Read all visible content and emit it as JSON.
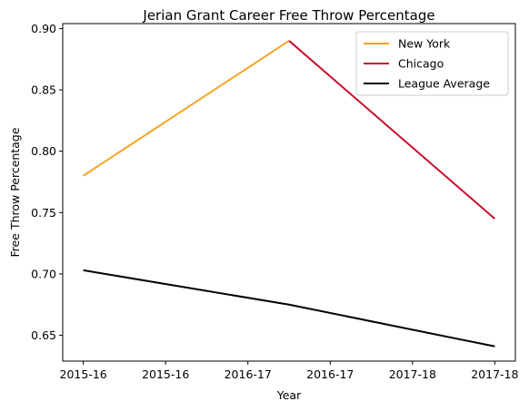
{
  "chart_data": {
    "type": "line",
    "title": "Jerian Grant Career Free Throw Percentage",
    "xlabel": "Year",
    "ylabel": "Free Throw Percentage",
    "x": [
      0,
      1,
      2
    ],
    "x_ticks": [
      {
        "x": 0,
        "label": "2015-16"
      },
      {
        "x": 0.4,
        "label": "2015-16"
      },
      {
        "x": 0.8,
        "label": "2016-17"
      },
      {
        "x": 1.2,
        "label": "2016-17"
      },
      {
        "x": 1.6,
        "label": "2017-18"
      },
      {
        "x": 2,
        "label": "2017-18"
      }
    ],
    "xlim": [
      -0.1,
      2.1
    ],
    "ylim": [
      0.629,
      0.904
    ],
    "y_ticks": [
      0.65,
      0.7,
      0.75,
      0.8,
      0.85,
      0.9
    ],
    "y_tick_labels": [
      "0.65",
      "0.70",
      "0.75",
      "0.80",
      "0.85",
      "0.90"
    ],
    "grid": false,
    "legend_position": "top-right",
    "series": [
      {
        "name": "New York",
        "color": "#F5A623",
        "points": [
          [
            0,
            0.78
          ],
          [
            1,
            0.89
          ]
        ]
      },
      {
        "name": "Chicago",
        "color": "#C8102E",
        "points": [
          [
            1,
            0.89
          ],
          [
            2,
            0.745
          ]
        ]
      },
      {
        "name": "League Average",
        "color": "#000000",
        "points": [
          [
            0,
            0.703
          ],
          [
            1,
            0.675
          ],
          [
            2,
            0.641
          ]
        ]
      }
    ]
  }
}
